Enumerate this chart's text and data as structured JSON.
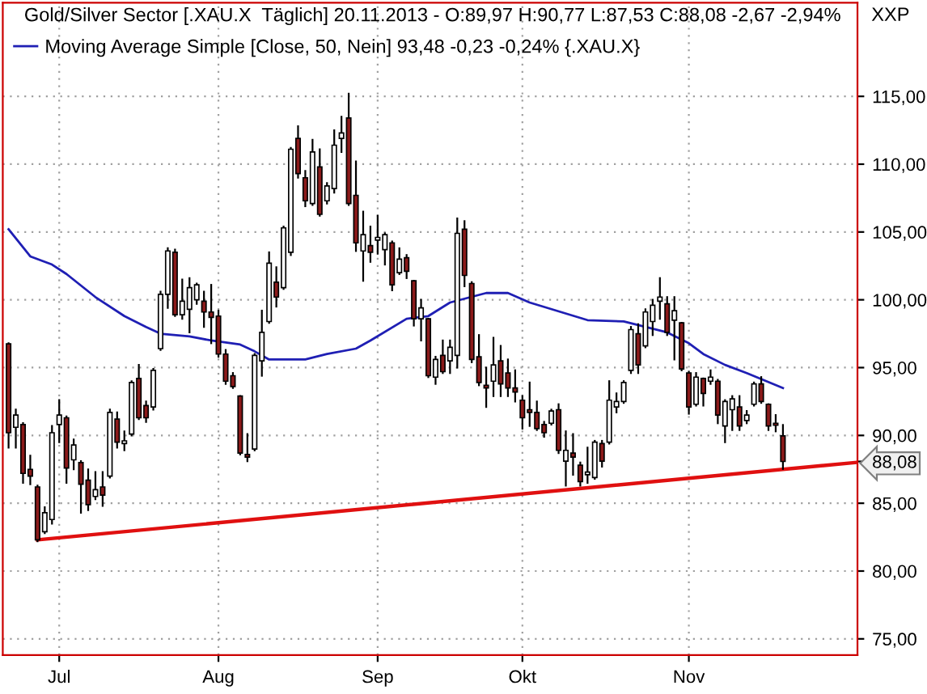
{
  "chart_data": {
    "type": "candlestick",
    "title": "Gold/Silver Sector [.XAU.X  Täglich] 20.11.2013 - O:89,97 H:90,77 L:87,53 C:88,08 -2,67 -2,94%",
    "categories": [
      null,
      null,
      null,
      null,
      null,
      null,
      null,
      "Jul",
      null,
      null,
      null,
      null,
      null,
      null,
      null,
      null,
      null,
      null,
      null,
      null,
      null,
      null,
      null,
      null,
      null,
      null,
      null,
      null,
      null,
      "Aug",
      null,
      null,
      null,
      null,
      null,
      null,
      null,
      null,
      null,
      null,
      null,
      null,
      null,
      null,
      null,
      null,
      null,
      null,
      null,
      null,
      null,
      "Sep",
      null,
      null,
      null,
      null,
      null,
      null,
      null,
      null,
      null,
      null,
      null,
      null,
      null,
      null,
      null,
      null,
      null,
      null,
      null,
      "Okt",
      null,
      null,
      null,
      null,
      null,
      null,
      null,
      null,
      null,
      null,
      null,
      null,
      null,
      null,
      null,
      null,
      null,
      null,
      null,
      null,
      null,
      null,
      "Nov",
      null,
      null,
      null,
      null,
      null,
      null,
      null,
      null,
      null,
      null,
      null,
      null,
      null,
      null,
      null,
      null,
      null,
      null,
      null,
      null,
      null,
      null,
      null
    ],
    "ohlc": [
      [
        96.75,
        96.8,
        89.1,
        90.2
      ],
      [
        90.6,
        91.9,
        89.1,
        91.5
      ],
      [
        90.8,
        90.9,
        86.5,
        87.2
      ],
      [
        87.5,
        88.5,
        86.4,
        87.0
      ],
      [
        86.2,
        86.3,
        82.2,
        82.3
      ],
      [
        82.9,
        84.7,
        82.8,
        84.3
      ],
      [
        83.8,
        90.7,
        83.5,
        90.2
      ],
      [
        90.8,
        92.6,
        89.5,
        91.5
      ],
      [
        91.3,
        91.4,
        86.5,
        87.6
      ],
      [
        88.2,
        89.7,
        87.5,
        89.3
      ],
      [
        88.0,
        88.1,
        84.3,
        86.4
      ],
      [
        86.7,
        87.5,
        84.5,
        84.9
      ],
      [
        85.5,
        87.3,
        85.3,
        86.0
      ],
      [
        86.2,
        87.3,
        84.8,
        85.6
      ],
      [
        87.0,
        91.9,
        86.9,
        91.7
      ],
      [
        91.2,
        91.7,
        89.1,
        89.5
      ],
      [
        89.4,
        90.3,
        88.9,
        89.6
      ],
      [
        90.1,
        94.0,
        90.0,
        93.9
      ],
      [
        94.2,
        95.2,
        91.2,
        91.3
      ],
      [
        92.2,
        92.5,
        91.0,
        91.3
      ],
      [
        92.1,
        94.9,
        91.9,
        94.8
      ],
      [
        96.4,
        100.6,
        96.3,
        100.4
      ],
      [
        100.4,
        103.8,
        99.4,
        103.6
      ],
      [
        103.5,
        103.7,
        98.8,
        98.9
      ],
      [
        98.9,
        101.5,
        98.6,
        99.9
      ],
      [
        99.3,
        101.6,
        97.6,
        100.9
      ],
      [
        100.0,
        101.2,
        99.7,
        101.1
      ],
      [
        99.9,
        100.6,
        98.0,
        99.1
      ],
      [
        99.1,
        101.1,
        96.8,
        98.7
      ],
      [
        98.8,
        99.2,
        95.8,
        96.0
      ],
      [
        96.0,
        96.3,
        93.8,
        94.0
      ],
      [
        94.4,
        94.6,
        93.5,
        93.6
      ],
      [
        92.9,
        92.9,
        88.6,
        88.7
      ],
      [
        88.6,
        90.1,
        88.1,
        88.4
      ],
      [
        89.0,
        96.0,
        88.9,
        95.9
      ],
      [
        95.5,
        99.2,
        94.4,
        97.6
      ],
      [
        98.4,
        103.5,
        98.3,
        102.7
      ],
      [
        101.3,
        102.4,
        99.5,
        100.2
      ],
      [
        100.9,
        105.4,
        100.8,
        105.3
      ],
      [
        103.5,
        111.2,
        103.3,
        111.1
      ],
      [
        111.9,
        112.8,
        109.0,
        109.3
      ],
      [
        109.0,
        109.5,
        106.9,
        107.3
      ],
      [
        107.1,
        111.8,
        107.0,
        110.9
      ],
      [
        109.8,
        111.1,
        106.2,
        106.3
      ],
      [
        107.3,
        108.6,
        107.1,
        108.4
      ],
      [
        108.2,
        112.5,
        107.9,
        111.4
      ],
      [
        111.9,
        113.5,
        110.9,
        112.3
      ],
      [
        113.4,
        115.2,
        107.0,
        107.1
      ],
      [
        107.7,
        110.2,
        103.6,
        104.2
      ],
      [
        103.6,
        106.5,
        101.4,
        104.8
      ],
      [
        104.0,
        105.4,
        102.8,
        103.5
      ],
      [
        104.4,
        106.2,
        103.4,
        104.6
      ],
      [
        103.7,
        104.9,
        102.6,
        104.8
      ],
      [
        104.2,
        104.3,
        100.7,
        101.1
      ],
      [
        102.0,
        103.8,
        101.9,
        103.0
      ],
      [
        103.1,
        103.3,
        101.6,
        102.1
      ],
      [
        101.4,
        101.4,
        98.1,
        98.6
      ],
      [
        98.6,
        100.0,
        97.0,
        99.4
      ],
      [
        98.6,
        98.6,
        94.3,
        94.4
      ],
      [
        94.3,
        95.8,
        93.8,
        95.6
      ],
      [
        95.9,
        97.0,
        94.6,
        94.7
      ],
      [
        95.5,
        97.0,
        94.6,
        96.5
      ],
      [
        95.9,
        106.0,
        95.0,
        104.9
      ],
      [
        105.2,
        105.8,
        101.0,
        101.8
      ],
      [
        101.2,
        101.3,
        95.4,
        95.6
      ],
      [
        95.8,
        97.4,
        93.7,
        93.9
      ],
      [
        93.7,
        95.0,
        92.1,
        93.5
      ],
      [
        94.0,
        97.2,
        92.9,
        95.2
      ],
      [
        95.5,
        96.6,
        92.9,
        93.8
      ],
      [
        94.6,
        95.6,
        92.9,
        93.5
      ],
      [
        93.5,
        94.8,
        92.5,
        93.2
      ],
      [
        92.6,
        92.9,
        90.5,
        91.3
      ],
      [
        91.9,
        93.9,
        90.7,
        91.7
      ],
      [
        91.7,
        92.5,
        90.4,
        90.5
      ],
      [
        90.8,
        91.0,
        89.9,
        90.2
      ],
      [
        90.9,
        91.9,
        90.8,
        91.8
      ],
      [
        91.9,
        92.3,
        88.7,
        88.9
      ],
      [
        88.1,
        90.3,
        86.3,
        88.9
      ],
      [
        88.7,
        90.1,
        87.1,
        88.4
      ],
      [
        87.8,
        88.0,
        86.3,
        86.6
      ],
      [
        87.1,
        89.1,
        86.5,
        87.3
      ],
      [
        86.9,
        89.6,
        86.8,
        89.5
      ],
      [
        89.4,
        89.6,
        87.7,
        88.1
      ],
      [
        89.5,
        94.0,
        89.4,
        92.6
      ],
      [
        92.1,
        93.1,
        91.7,
        92.5
      ],
      [
        92.5,
        94.0,
        92.4,
        93.9
      ],
      [
        94.8,
        98.0,
        94.6,
        97.8
      ],
      [
        97.5,
        98.2,
        94.6,
        95.2
      ],
      [
        96.6,
        99.3,
        96.5,
        99.1
      ],
      [
        98.4,
        100.0,
        97.4,
        99.6
      ],
      [
        99.9,
        101.6,
        98.6,
        100.2
      ],
      [
        99.7,
        100.2,
        97.4,
        97.6
      ],
      [
        98.5,
        100.2,
        95.6,
        99.2
      ],
      [
        98.3,
        98.3,
        94.8,
        94.9
      ],
      [
        94.6,
        94.7,
        91.6,
        92.1
      ],
      [
        92.3,
        94.6,
        92.2,
        94.3
      ],
      [
        94.2,
        94.2,
        92.2,
        93.1
      ],
      [
        94.0,
        94.8,
        93.8,
        94.3
      ],
      [
        94.0,
        94.1,
        90.9,
        91.5
      ],
      [
        90.7,
        92.6,
        89.5,
        92.5
      ],
      [
        91.9,
        92.9,
        90.4,
        92.7
      ],
      [
        92.1,
        92.9,
        90.4,
        90.7
      ],
      [
        91.1,
        91.8,
        90.9,
        91.5
      ],
      [
        92.3,
        93.9,
        92.2,
        93.8
      ],
      [
        93.8,
        94.3,
        92.4,
        92.5
      ],
      [
        92.3,
        92.3,
        90.4,
        90.7
      ],
      [
        90.9,
        91.5,
        90.3,
        90.75
      ],
      [
        89.97,
        90.77,
        87.53,
        88.08
      ],
      null,
      null,
      null,
      null,
      null,
      null,
      null,
      null,
      null,
      null
    ],
    "colors": [
      "#8b1a1a",
      "#ffffff",
      "#8b1a1a",
      "#8b1a1a",
      "#8b1a1a",
      "#ffffff",
      "#ffffff",
      "#ffffff",
      "#8b1a1a",
      "#ffffff",
      "#8b1a1a",
      "#8b1a1a",
      "#ffffff",
      "#8b1a1a",
      "#ffffff",
      "#8b1a1a",
      "#ffffff",
      "#ffffff",
      "#8b1a1a",
      "#8b1a1a",
      "#ffffff",
      "#ffffff",
      "#ffffff",
      "#8b1a1a",
      "#ffffff",
      "#ffffff",
      "#ffffff",
      "#8b1a1a",
      "#8b1a1a",
      "#8b1a1a",
      "#8b1a1a",
      "#8b1a1a",
      "#8b1a1a",
      "#8b1a1a",
      "#ffffff",
      "#ffffff",
      "#ffffff",
      "#8b1a1a",
      "#ffffff",
      "#ffffff",
      "#8b1a1a",
      "#8b1a1a",
      "#ffffff",
      "#8b1a1a",
      "#ffffff",
      "#ffffff",
      "#ffffff",
      "#8b1a1a",
      "#8b1a1a",
      "#ffffff",
      "#8b1a1a",
      "#ffffff",
      "#ffffff",
      "#8b1a1a",
      "#ffffff",
      "#8b1a1a",
      "#8b1a1a",
      "#ffffff",
      "#8b1a1a",
      "#ffffff",
      "#8b1a1a",
      "#ffffff",
      "#ffffff",
      "#8b1a1a",
      "#8b1a1a",
      "#8b1a1a",
      "#8b1a1a",
      "#ffffff",
      "#8b1a1a",
      "#8b1a1a",
      "#8b1a1a",
      "#8b1a1a",
      "#8b1a1a",
      "#8b1a1a",
      "#8b1a1a",
      "#ffffff",
      "#8b1a1a",
      "#ffffff",
      "#8b1a1a",
      "#8b1a1a",
      "#ffffff",
      "#ffffff",
      "#8b1a1a",
      "#ffffff",
      "#ffffff",
      "#ffffff",
      "#ffffff",
      "#8b1a1a",
      "#ffffff",
      "#ffffff",
      "#ffffff",
      "#8b1a1a",
      "#ffffff",
      "#8b1a1a",
      "#8b1a1a",
      "#ffffff",
      "#8b1a1a",
      "#ffffff",
      "#8b1a1a",
      "#ffffff",
      "#ffffff",
      "#8b1a1a",
      "#ffffff",
      "#ffffff",
      "#8b1a1a",
      "#8b1a1a",
      "#8b1a1a",
      "#8b1a1a",
      null,
      null,
      null,
      null,
      null,
      null,
      null,
      null,
      null,
      null
    ],
    "series": [
      {
        "type": "line",
        "name": "Moving Average Simple [Close, 50, Nein] 93,48 -0,23 -0,24% {.XAU.X}",
        "color": "#1f1fb4",
        "values": [
          105.2,
          null,
          null,
          103.2,
          null,
          null,
          102.6,
          null,
          101.9,
          null,
          null,
          null,
          100.2,
          null,
          null,
          null,
          98.8,
          null,
          null,
          98.0,
          null,
          97.5,
          null,
          null,
          null,
          97.3,
          null,
          null,
          97.0,
          null,
          null,
          null,
          96.7,
          null,
          96.2,
          null,
          95.6,
          null,
          null,
          null,
          null,
          95.6,
          null,
          null,
          96.0,
          null,
          null,
          null,
          96.4,
          null,
          97.0,
          null,
          null,
          null,
          null,
          98.6,
          null,
          null,
          98.8,
          null,
          null,
          99.8,
          null,
          null,
          null,
          null,
          100.5,
          null,
          null,
          100.5,
          null,
          null,
          99.8,
          null,
          null,
          null,
          null,
          null,
          null,
          null,
          98.5,
          null,
          null,
          null,
          null,
          98.4,
          null,
          null,
          98.0,
          null,
          null,
          97.6,
          null,
          null,
          96.8,
          null,
          96.0,
          null,
          null,
          95.2,
          null,
          null,
          94.6,
          null,
          null,
          null,
          null,
          93.5,
          null,
          null,
          null,
          null,
          null,
          null,
          null,
          null,
          null,
          null
        ]
      },
      {
        "type": "line",
        "color": "#e01010",
        "values": [
          null,
          null,
          null,
          null,
          82.3,
          null,
          null,
          null,
          null,
          null,
          null,
          null,
          null,
          null,
          null,
          null,
          null,
          null,
          null,
          null,
          null,
          null,
          null,
          null,
          null,
          null,
          null,
          null,
          null,
          null,
          null,
          null,
          null,
          null,
          null,
          null,
          null,
          null,
          null,
          null,
          null,
          null,
          null,
          null,
          null,
          null,
          null,
          null,
          null,
          null,
          null,
          null,
          null,
          null,
          null,
          null,
          null,
          null,
          null,
          null,
          null,
          null,
          null,
          null,
          null,
          null,
          null,
          null,
          null,
          null,
          null,
          null,
          null,
          null,
          null,
          null,
          null,
          null,
          null,
          null,
          null,
          null,
          null,
          null,
          null,
          null,
          null,
          null,
          null,
          null,
          null,
          null,
          null,
          null,
          null,
          null,
          null,
          null,
          null,
          null,
          null,
          null,
          null,
          null,
          null,
          null,
          null,
          null,
          null,
          null,
          null,
          null,
          null,
          null,
          null,
          null,
          null,
          88.0
        ]
      }
    ],
    "ylim": [
      73.8,
      121.9
    ],
    "yticks": [
      {
        "value": 75,
        "label": "75,00"
      },
      {
        "value": 80,
        "label": "80,00"
      },
      {
        "value": 85,
        "label": "85,00"
      },
      {
        "value": 88.08,
        "label": "88,08"
      },
      {
        "value": 90,
        "label": "90,00"
      },
      {
        "value": 95,
        "label": "95,00"
      },
      {
        "value": 100,
        "label": "100,00"
      },
      {
        "value": 105,
        "label": "105,00"
      },
      {
        "value": 110,
        "label": "110,00"
      },
      {
        "value": 115,
        "label": "115,00"
      }
    ],
    "annotations": [
      "XXP"
    ],
    "grid": true,
    "legend": "top left"
  }
}
